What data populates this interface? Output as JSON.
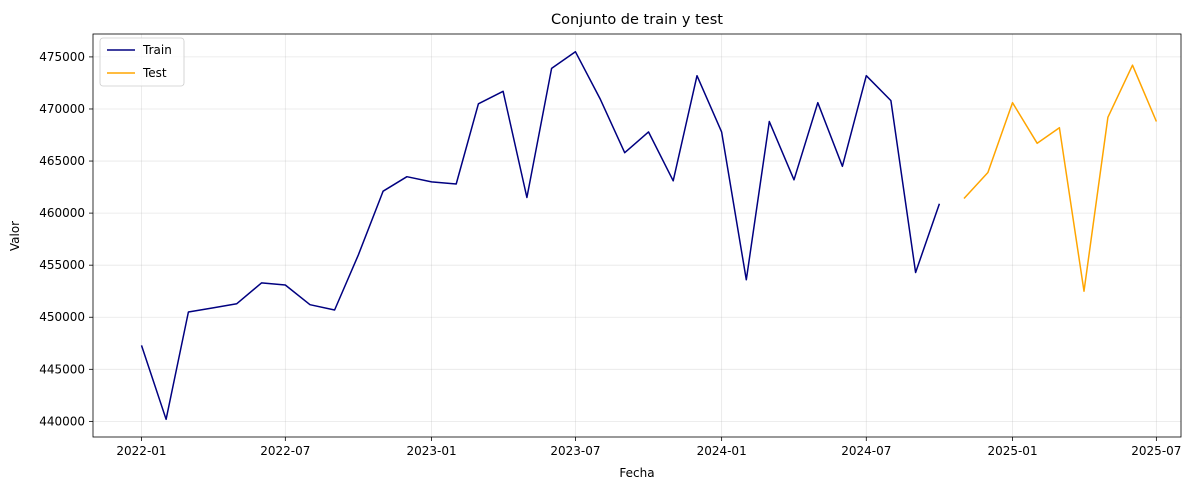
{
  "chart_data": {
    "type": "line",
    "title": "Conjunto de train y test",
    "xlabel": "Fecha",
    "ylabel": "Valor",
    "xlim": [
      "2021-11-01",
      "2025-08-01"
    ],
    "ylim": [
      438500,
      477200
    ],
    "grid": true,
    "legend_position": "top-left",
    "x_ticks": [
      "2022-01",
      "2022-07",
      "2023-01",
      "2023-07",
      "2024-01",
      "2024-07",
      "2025-01",
      "2025-07"
    ],
    "y_ticks": [
      440000,
      445000,
      450000,
      455000,
      460000,
      465000,
      470000,
      475000
    ],
    "series": [
      {
        "name": "Train",
        "color": "#000080",
        "x": [
          "2022-01",
          "2022-02",
          "2022-03",
          "2022-04",
          "2022-05",
          "2022-06",
          "2022-07",
          "2022-08",
          "2022-09",
          "2022-10",
          "2022-11",
          "2022-12",
          "2023-01",
          "2023-02",
          "2023-03",
          "2023-04",
          "2023-05",
          "2023-06",
          "2023-07",
          "2023-08",
          "2023-09",
          "2023-10",
          "2023-11",
          "2023-12",
          "2024-01",
          "2024-02",
          "2024-03",
          "2024-04",
          "2024-05",
          "2024-06",
          "2024-07",
          "2024-08",
          "2024-09",
          "2024-10"
        ],
        "values": [
          447300,
          440200,
          450500,
          450900,
          451300,
          453300,
          453100,
          451200,
          450700,
          456000,
          462100,
          463500,
          463000,
          462800,
          470500,
          471700,
          461500,
          473900,
          475500,
          471000,
          465800,
          467800,
          463100,
          473200,
          467800,
          453600,
          468800,
          463200,
          470600,
          464500,
          473200,
          470800,
          454300,
          460900
        ]
      },
      {
        "name": "Test",
        "color": "#ffa500",
        "x": [
          "2024-11",
          "2024-12",
          "2025-01",
          "2025-02",
          "2025-03",
          "2025-04",
          "2025-05",
          "2025-06",
          "2025-07"
        ],
        "values": [
          461400,
          463900,
          470600,
          466700,
          468200,
          452500,
          469200,
          474200,
          468800
        ]
      }
    ]
  }
}
